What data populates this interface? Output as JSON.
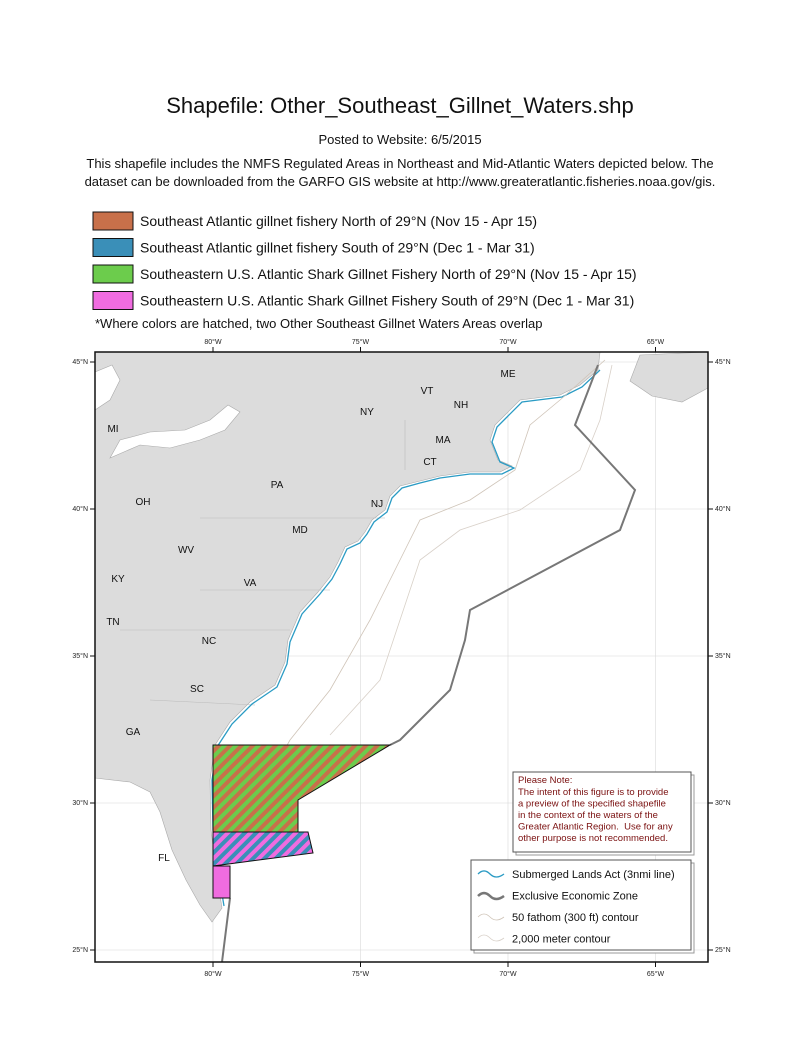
{
  "header": {
    "title": "Shapefile: Other_Southeast_Gillnet_Waters.shp",
    "posted": "Posted to Website: 6/5/2015",
    "description": [
      "This shapefile includes the NMFS Regulated Areas in Northeast and Mid-Atlantic Waters depicted below. The",
      "dataset can be downloaded from the GARFO GIS website at http://www.greateratlantic.fisheries.noaa.gov/gis."
    ]
  },
  "legend": {
    "items": [
      {
        "label": "Southeast Atlantic gillnet fishery North of 29°N (Nov 15 - Apr 15)",
        "color": "#c8704a"
      },
      {
        "label": "Southeast Atlantic gillnet fishery South of 29°N (Dec 1 - Mar 31)",
        "color": "#3a8fb8"
      },
      {
        "label": "Southeastern U.S. Atlantic Shark Gillnet Fishery North of 29°N (Nov 15 - Apr 15)",
        "color": "#6ccc4c"
      },
      {
        "label": "Southeastern U.S. Atlantic Shark Gillnet Fishery South of 29°N (Dec 1 - Mar 31)",
        "color": "#f06ce0"
      }
    ],
    "note": "*Where colors are hatched, two Other Southeast Gillnet Waters Areas overlap"
  },
  "map": {
    "lon_ticks": [
      {
        "value": -80,
        "label": "80°W"
      },
      {
        "value": -75,
        "label": "75°W"
      },
      {
        "value": -70,
        "label": "70°W"
      },
      {
        "value": -65,
        "label": "65°W"
      }
    ],
    "lat_ticks": [
      {
        "value": 45,
        "label": "45°N"
      },
      {
        "value": 40,
        "label": "40°N"
      },
      {
        "value": 35,
        "label": "35°N"
      },
      {
        "value": 30,
        "label": "30°N"
      },
      {
        "value": 25,
        "label": "25°N"
      }
    ],
    "state_labels": [
      "ME",
      "VT",
      "NH",
      "NY",
      "MI",
      "MA",
      "CT",
      "PA",
      "OH",
      "NJ",
      "MD",
      "WV",
      "KY",
      "VA",
      "TN",
      "NC",
      "SC",
      "GA",
      "FL"
    ],
    "note": {
      "title": "Please Note:",
      "lines": [
        "The intent of this figure is to provide",
        "a preview of the specified shapefile",
        "in the context of the waters of the",
        "Greater Atlantic Region.  Use for any",
        "other purpose is not recommended."
      ]
    },
    "map_legend": [
      "Submerged Lands Act (3nmi line)",
      "Exclusive Economic Zone",
      "50 fathom (300 ft) contour",
      "2,000 meter contour"
    ]
  }
}
